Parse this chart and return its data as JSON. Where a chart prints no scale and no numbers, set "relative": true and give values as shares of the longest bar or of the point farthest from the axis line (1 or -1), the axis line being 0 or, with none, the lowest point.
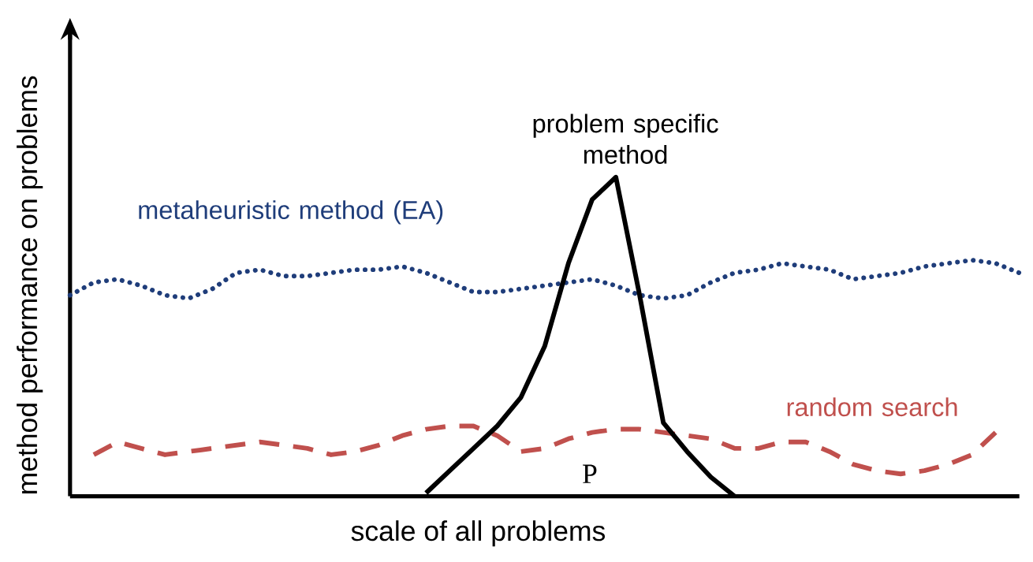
{
  "chart_data": {
    "type": "line",
    "relative": true,
    "xlabel": "scale of all problems",
    "ylabel": "method performance on problems",
    "categories": [
      null,
      null,
      null,
      null,
      null,
      null,
      null,
      null,
      null,
      null,
      null,
      null,
      null,
      null,
      null,
      null,
      null,
      null,
      null,
      null,
      null,
      null,
      null,
      null,
      null,
      null,
      null,
      null,
      null,
      null,
      null,
      null,
      null,
      null,
      null,
      null,
      null,
      null,
      null,
      null,
      null
    ],
    "series": [
      {
        "name": "metaheuristic method (EA)",
        "color": "#1f3d7a",
        "line_style": "dotted",
        "values": [
          0.63,
          0.67,
          0.68,
          0.66,
          0.63,
          0.62,
          0.65,
          0.7,
          0.71,
          0.69,
          0.69,
          0.7,
          0.71,
          0.71,
          0.72,
          0.7,
          0.67,
          0.64,
          0.64,
          0.65,
          0.66,
          0.67,
          0.68,
          0.66,
          0.63,
          0.62,
          0.63,
          0.67,
          0.7,
          0.71,
          0.73,
          0.72,
          0.71,
          0.68,
          0.69,
          0.7,
          0.72,
          0.73,
          0.74,
          0.73,
          0.7
        ]
      },
      {
        "name": "random search",
        "color": "#c0504d",
        "line_style": "dashed",
        "values": [
          null,
          0.13,
          0.17,
          0.15,
          0.13,
          0.14,
          0.15,
          0.16,
          0.17,
          0.16,
          0.15,
          0.13,
          0.14,
          0.16,
          0.19,
          0.21,
          0.22,
          0.22,
          0.19,
          0.14,
          0.15,
          0.18,
          0.2,
          0.21,
          0.21,
          0.2,
          0.19,
          0.18,
          0.15,
          0.15,
          0.17,
          0.17,
          0.14,
          0.1,
          0.08,
          0.07,
          0.08,
          0.1,
          0.13,
          0.2,
          null
        ]
      },
      {
        "name": "problem specific method",
        "color": "#000000",
        "line_style": "solid",
        "values": [
          null,
          null,
          null,
          null,
          null,
          null,
          null,
          null,
          null,
          null,
          null,
          null,
          null,
          null,
          null,
          0.01,
          0.08,
          0.15,
          0.22,
          0.31,
          0.47,
          0.73,
          0.93,
          1.0,
          0.63,
          0.23,
          0.14,
          0.06,
          0.0,
          null,
          null,
          null,
          null,
          null,
          null,
          null,
          null,
          null,
          null,
          null,
          null
        ]
      }
    ],
    "annotations": [
      "P"
    ]
  }
}
